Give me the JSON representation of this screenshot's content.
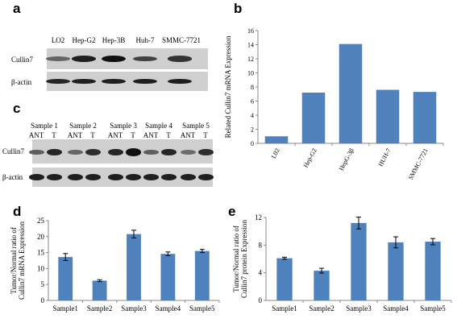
{
  "panels": {
    "a": {
      "letter": "a",
      "lanes": [
        "LO2",
        "Hep-G2",
        "Hep-3B",
        "Huh-7",
        "SMMC-7721"
      ],
      "rows": [
        "Cullin7",
        "β-actin"
      ],
      "band_intensity": {
        "Cullin7": [
          0.35,
          0.85,
          0.95,
          0.6,
          0.7
        ],
        "β-actin": [
          0.8,
          0.85,
          0.85,
          0.85,
          0.85
        ]
      }
    },
    "b": {
      "letter": "b",
      "chart_data": {
        "type": "bar",
        "categories": [
          "L02",
          "Hep-G2",
          "HepG-3β",
          "HUH-7",
          "SMMC-7721"
        ],
        "values": [
          1.0,
          7.2,
          14.1,
          7.6,
          7.3
        ],
        "ylabel": "Related  Cullin7 mRNA Expression",
        "ylim": [
          0,
          16
        ],
        "yticks": [
          "0",
          "2",
          "4",
          "6",
          "8",
          "10",
          "12",
          "14",
          "16"
        ],
        "bar_color": "#4f81bd",
        "grid": false
      }
    },
    "c": {
      "letter": "c",
      "samples": [
        "Sample  1",
        "Sample  2",
        "Sample  3",
        "Sample  4",
        "Sample  5"
      ],
      "sublanes": [
        "ANT",
        "T"
      ],
      "rows": [
        "Cullin7",
        "β-actin"
      ],
      "band_intensity": {
        "Cullin7": [
          0.4,
          0.8,
          0.35,
          0.75,
          0.8,
          0.95,
          0.4,
          0.8,
          0.3,
          0.75
        ],
        "β-actin": [
          0.85,
          0.85,
          0.85,
          0.85,
          0.85,
          0.85,
          0.85,
          0.85,
          0.85,
          0.85
        ]
      }
    },
    "d": {
      "letter": "d",
      "chart_data": {
        "type": "bar",
        "categories": [
          "Sample1",
          "Sample2",
          "Sample3",
          "Sample4",
          "Sample5"
        ],
        "values": [
          13.6,
          6.2,
          20.8,
          14.6,
          15.5
        ],
        "errors": [
          1.1,
          0.3,
          1.2,
          0.6,
          0.5
        ],
        "ylabel_lines": [
          "Tumor/Normal  ratio  of",
          "Cullin7  mRNA Expression"
        ],
        "ylim": [
          0,
          25
        ],
        "yticks": [
          "0",
          "5",
          "10",
          "15",
          "20",
          "25"
        ],
        "bar_color": "#4f81bd",
        "grid": false
      }
    },
    "e": {
      "letter": "e",
      "chart_data": {
        "type": "bar",
        "categories": [
          "Sample1",
          "Sample2",
          "Sample3",
          "Sample4",
          "Sample5"
        ],
        "values": [
          6.1,
          4.3,
          11.2,
          8.4,
          8.5
        ],
        "errors": [
          0.15,
          0.35,
          0.85,
          0.8,
          0.45
        ],
        "ylabel_lines": [
          "Tumor/Normal  ratio  of",
          "Cullin7  protein Expression"
        ],
        "ylim": [
          0,
          12
        ],
        "yticks": [
          "0",
          "4",
          "8",
          "12"
        ],
        "bar_color": "#4f81bd",
        "grid": false
      }
    }
  }
}
